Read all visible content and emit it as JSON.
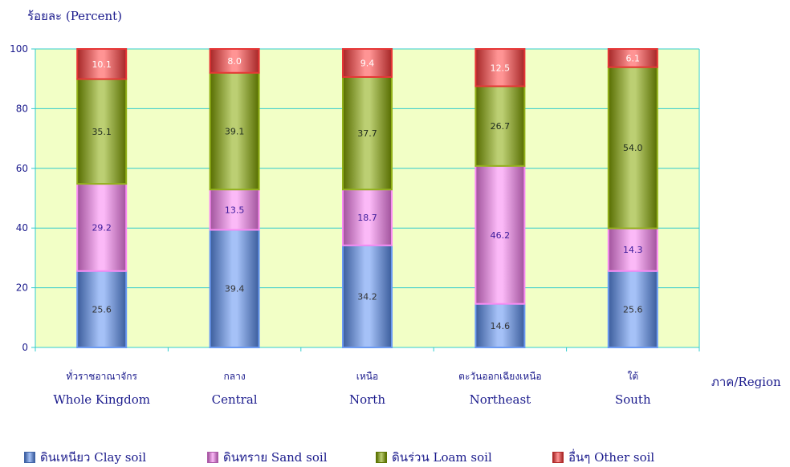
{
  "chart_data": {
    "type": "bar",
    "stacked": true,
    "ylabel": "ร้อยละ (Percent)",
    "xlabel": "ภาค/Region",
    "ylim": [
      0,
      100
    ],
    "yticks": [
      "0",
      "20",
      "40",
      "60",
      "80",
      "100"
    ],
    "categories": [
      {
        "th": "ทั่วราชอาณาจักร",
        "en": "Whole Kingdom"
      },
      {
        "th": "กลาง",
        "en": "Central"
      },
      {
        "th": "เหนือ",
        "en": "North"
      },
      {
        "th": "ตะวันออกเฉียงเหนือ",
        "en": "Northeast"
      },
      {
        "th": "ใต้",
        "en": "South"
      }
    ],
    "series": [
      {
        "name": "ดินเหนียว Clay soil",
        "values": [
          25.6,
          39.4,
          34.2,
          14.6,
          25.6
        ],
        "labels": [
          "25.6",
          "39.4",
          "34.2",
          "14.6",
          "25.6"
        ],
        "color": "#5b8ff0",
        "labelColor": "#333333"
      },
      {
        "name": "ดินทราย Sand soil",
        "values": [
          29.2,
          13.5,
          18.7,
          46.2,
          14.3
        ],
        "labels": [
          "29.2",
          "13.5",
          "18.7",
          "46.2",
          "14.3"
        ],
        "color": "#f77ff0",
        "labelColor": "#3a1a9a"
      },
      {
        "name": "ดินร่วน Loam soil",
        "values": [
          35.1,
          39.1,
          37.7,
          26.7,
          54.0
        ],
        "labels": [
          "35.1",
          "39.1",
          "37.7",
          "26.7",
          "54.0"
        ],
        "color": "#86a800",
        "labelColor": "#1e2a1e"
      },
      {
        "name": "อื่นๆ Other soil",
        "values": [
          10.1,
          8.0,
          9.4,
          12.5,
          6.1
        ],
        "labels": [
          "10.1",
          "8.0",
          "9.4",
          "12.5",
          "6.1"
        ],
        "color": "#ff3c3c",
        "labelColor": "#ffffff"
      }
    ],
    "grid": true,
    "plot_background": "#f2ffc6",
    "legend_position": "bottom"
  }
}
